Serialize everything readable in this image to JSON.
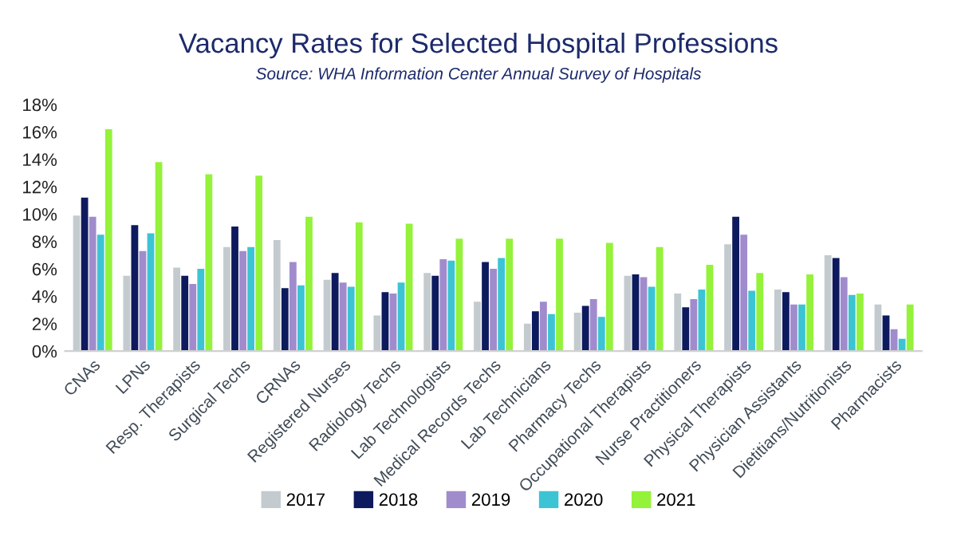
{
  "chart_data": {
    "type": "bar",
    "title": "Vacancy Rates for Selected Hospital Professions",
    "annotations": [
      "Source: WHA Information Center Annual Survey of Hospitals"
    ],
    "categories": [
      "CNAs",
      "LPNs",
      "Resp. Therapists",
      "Surgical Techs",
      "CRNAs",
      "Registered Nurses",
      "Radiology Techs",
      "Lab Technologists",
      "Medical Records Techs",
      "Lab Technicians",
      "Pharmacy Techs",
      "Occupational Therapists",
      "Nurse Practitioners",
      "Physical Therapists",
      "Physician Assistants",
      "Dietitians/Nutritionists",
      "Pharmacists"
    ],
    "series": [
      {
        "name": "2017",
        "color": "#c3cbcf",
        "values": [
          9.9,
          5.5,
          6.1,
          7.6,
          8.1,
          5.2,
          2.6,
          5.7,
          3.6,
          2.0,
          2.8,
          5.5,
          4.2,
          7.8,
          4.5,
          7.0,
          3.4
        ]
      },
      {
        "name": "2018",
        "color": "#0d1a5e",
        "values": [
          11.2,
          9.2,
          5.5,
          9.1,
          4.6,
          5.7,
          4.3,
          5.5,
          6.5,
          2.9,
          3.3,
          5.6,
          3.2,
          9.8,
          4.3,
          6.8,
          2.6
        ]
      },
      {
        "name": "2019",
        "color": "#a08ccc",
        "values": [
          9.8,
          7.3,
          4.9,
          7.3,
          6.5,
          5.0,
          4.2,
          6.7,
          6.0,
          3.6,
          3.8,
          5.4,
          3.8,
          8.5,
          3.4,
          5.4,
          1.6
        ]
      },
      {
        "name": "2020",
        "color": "#3cc4d4",
        "values": [
          8.5,
          8.6,
          6.0,
          7.6,
          4.8,
          4.7,
          5.0,
          6.6,
          6.8,
          2.7,
          2.5,
          4.7,
          4.5,
          4.4,
          3.4,
          4.1,
          0.9
        ]
      },
      {
        "name": "2021",
        "color": "#94f23a",
        "values": [
          16.2,
          13.8,
          12.9,
          12.8,
          9.8,
          9.4,
          9.3,
          8.2,
          8.2,
          8.2,
          7.9,
          7.6,
          6.3,
          5.7,
          5.6,
          4.2,
          3.4
        ]
      }
    ],
    "ylim": [
      0,
      18
    ],
    "yticks": [
      {
        "value": 0,
        "label": "0%"
      },
      {
        "value": 2,
        "label": "2%"
      },
      {
        "value": 4,
        "label": "4%"
      },
      {
        "value": 6,
        "label": "6%"
      },
      {
        "value": 8,
        "label": "8%"
      },
      {
        "value": 10,
        "label": "10%"
      },
      {
        "value": 12,
        "label": "12%"
      },
      {
        "value": 14,
        "label": "14%"
      },
      {
        "value": 16,
        "label": "16%"
      },
      {
        "value": 18,
        "label": "18%"
      }
    ],
    "grid": false,
    "legend": "bottom"
  }
}
